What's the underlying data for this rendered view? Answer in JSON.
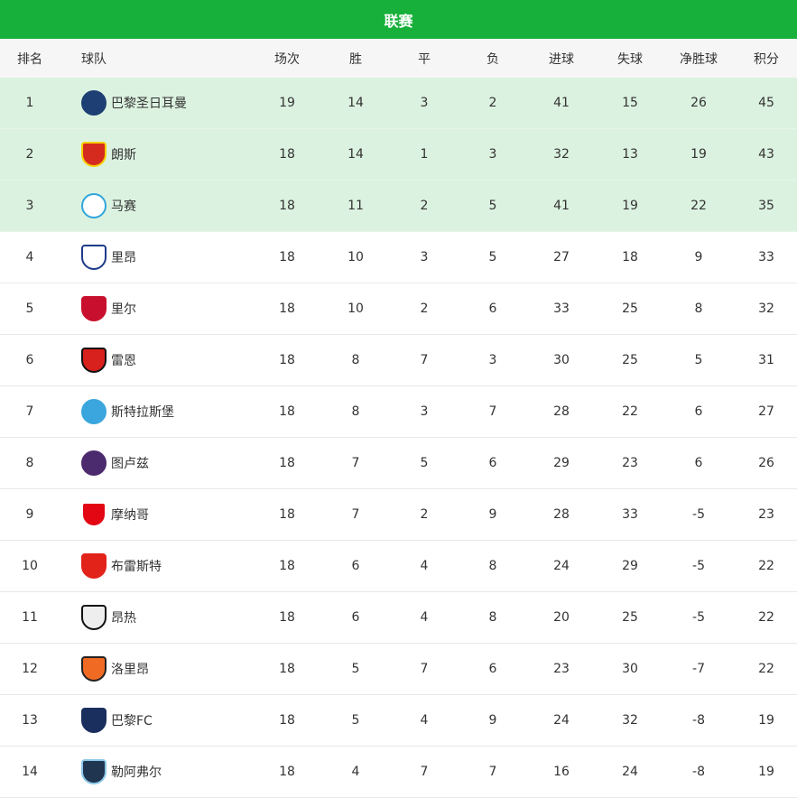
{
  "title": "联赛",
  "headers": [
    "排名",
    "球队",
    "场次",
    "胜",
    "平",
    "负",
    "进球",
    "失球",
    "净胜球",
    "积分"
  ],
  "highlight_color": "#dcf2e0",
  "accent_color": "#17b03a",
  "rows": [
    {
      "rank": "1",
      "team": "巴黎圣日耳曼",
      "logo": "psg-logo",
      "played": "19",
      "w": "14",
      "d": "3",
      "l": "2",
      "gf": "41",
      "ga": "15",
      "gd": "26",
      "pts": "45"
    },
    {
      "rank": "2",
      "team": "朗斯",
      "logo": "lens-logo",
      "played": "18",
      "w": "14",
      "d": "1",
      "l": "3",
      "gf": "32",
      "ga": "13",
      "gd": "19",
      "pts": "43"
    },
    {
      "rank": "3",
      "team": "马赛",
      "logo": "marseille-logo",
      "played": "18",
      "w": "11",
      "d": "2",
      "l": "5",
      "gf": "41",
      "ga": "19",
      "gd": "22",
      "pts": "35"
    },
    {
      "rank": "4",
      "team": "里昂",
      "logo": "lyon-logo",
      "played": "18",
      "w": "10",
      "d": "3",
      "l": "5",
      "gf": "27",
      "ga": "18",
      "gd": "9",
      "pts": "33"
    },
    {
      "rank": "5",
      "team": "里尔",
      "logo": "lille-logo",
      "played": "18",
      "w": "10",
      "d": "2",
      "l": "6",
      "gf": "33",
      "ga": "25",
      "gd": "8",
      "pts": "32"
    },
    {
      "rank": "6",
      "team": "雷恩",
      "logo": "rennes-logo",
      "played": "18",
      "w": "8",
      "d": "7",
      "l": "3",
      "gf": "30",
      "ga": "25",
      "gd": "5",
      "pts": "31"
    },
    {
      "rank": "7",
      "team": "斯特拉斯堡",
      "logo": "strasbourg-logo",
      "played": "18",
      "w": "8",
      "d": "3",
      "l": "7",
      "gf": "28",
      "ga": "22",
      "gd": "6",
      "pts": "27"
    },
    {
      "rank": "8",
      "team": "图卢兹",
      "logo": "toulouse-logo",
      "played": "18",
      "w": "7",
      "d": "5",
      "l": "6",
      "gf": "29",
      "ga": "23",
      "gd": "6",
      "pts": "26"
    },
    {
      "rank": "9",
      "team": "摩纳哥",
      "logo": "monaco-logo",
      "played": "18",
      "w": "7",
      "d": "2",
      "l": "9",
      "gf": "28",
      "ga": "33",
      "gd": "-5",
      "pts": "23"
    },
    {
      "rank": "10",
      "team": "布雷斯特",
      "logo": "brest-logo",
      "played": "18",
      "w": "6",
      "d": "4",
      "l": "8",
      "gf": "24",
      "ga": "29",
      "gd": "-5",
      "pts": "22"
    },
    {
      "rank": "11",
      "team": "昂热",
      "logo": "angers-logo",
      "played": "18",
      "w": "6",
      "d": "4",
      "l": "8",
      "gf": "20",
      "ga": "25",
      "gd": "-5",
      "pts": "22"
    },
    {
      "rank": "12",
      "team": "洛里昂",
      "logo": "lorient-logo",
      "played": "18",
      "w": "5",
      "d": "7",
      "l": "6",
      "gf": "23",
      "ga": "30",
      "gd": "-7",
      "pts": "22"
    },
    {
      "rank": "13",
      "team": "巴黎FC",
      "logo": "paris-fc-logo",
      "played": "18",
      "w": "5",
      "d": "4",
      "l": "9",
      "gf": "24",
      "ga": "32",
      "gd": "-8",
      "pts": "19"
    },
    {
      "rank": "14",
      "team": "勒阿弗尔",
      "logo": "le-havre-logo",
      "played": "18",
      "w": "4",
      "d": "7",
      "l": "7",
      "gf": "16",
      "ga": "24",
      "gd": "-8",
      "pts": "19"
    }
  ]
}
